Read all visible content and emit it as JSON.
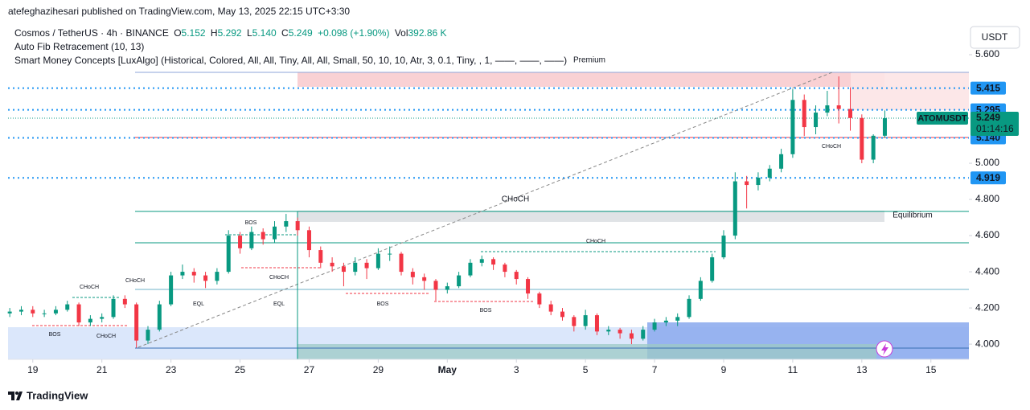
{
  "chart_data": {
    "type": "candlestick",
    "published": "atefeghazihesari published on TradingView.com, May 13, 2025 22:15 UTC+3:30",
    "legend": {
      "symbol": "Cosmos / TetherUS · 4h · BINANCE",
      "items": [
        {
          "key": "O",
          "value": "5.152"
        },
        {
          "key": "H",
          "value": "5.292"
        },
        {
          "key": "L",
          "value": "5.140"
        },
        {
          "key": "C",
          "value": "5.249"
        }
      ],
      "change": "+0.098 (+1.90%)",
      "vol_key": "Vol",
      "vol": "392.86 K"
    },
    "indicators": [
      "Auto Fib Retracement (10, 13)",
      "Smart Money Concepts [LuxAlgo] (Historical, Colored, All, All, Tiny, All, All, Small, 50, 10, 10, Atr, 3, 0.1, Tiny, , 1, ——, ——, ——)"
    ],
    "currency": "USDT",
    "brand": "TradingView",
    "up_color": "#089981",
    "down_color": "#f23645",
    "ohlc": [
      [
        4.17,
        4.2,
        4.15,
        4.18
      ],
      [
        4.18,
        4.21,
        4.16,
        4.19
      ],
      [
        4.19,
        4.21,
        4.15,
        4.17
      ],
      [
        4.17,
        4.19,
        4.15,
        4.17
      ],
      [
        4.17,
        4.21,
        4.16,
        4.19
      ],
      [
        4.19,
        4.24,
        4.18,
        4.22
      ],
      [
        4.22,
        4.23,
        4.1,
        4.12
      ],
      [
        4.12,
        4.16,
        4.1,
        4.14
      ],
      [
        4.14,
        4.17,
        4.12,
        4.15
      ],
      [
        4.15,
        4.27,
        4.14,
        4.25
      ],
      [
        4.25,
        4.27,
        4.2,
        4.22
      ],
      [
        4.22,
        4.23,
        3.98,
        4.02
      ],
      [
        4.02,
        4.1,
        4.0,
        4.08
      ],
      [
        4.08,
        4.24,
        4.07,
        4.22
      ],
      [
        4.22,
        4.4,
        4.21,
        4.38
      ],
      [
        4.38,
        4.44,
        4.36,
        4.4
      ],
      [
        4.4,
        4.42,
        4.34,
        4.38
      ],
      [
        4.38,
        4.4,
        4.31,
        4.35
      ],
      [
        4.35,
        4.42,
        4.33,
        4.4
      ],
      [
        4.4,
        4.63,
        4.39,
        4.6
      ],
      [
        4.6,
        4.62,
        4.5,
        4.53
      ],
      [
        4.53,
        4.65,
        4.52,
        4.62
      ],
      [
        4.62,
        4.64,
        4.55,
        4.58
      ],
      [
        4.58,
        4.68,
        4.56,
        4.65
      ],
      [
        4.65,
        4.72,
        4.62,
        4.68
      ],
      [
        4.68,
        4.7,
        4.6,
        4.63
      ],
      [
        4.63,
        4.65,
        4.48,
        4.52
      ],
      [
        4.52,
        4.54,
        4.42,
        4.45
      ],
      [
        4.45,
        4.48,
        4.4,
        4.43
      ],
      [
        4.43,
        4.45,
        4.32,
        4.4
      ],
      [
        4.4,
        4.48,
        4.38,
        4.45
      ],
      [
        4.45,
        4.47,
        4.36,
        4.42
      ],
      [
        4.42,
        4.53,
        4.41,
        4.5
      ],
      [
        4.5,
        4.54,
        4.46,
        4.5
      ],
      [
        4.5,
        4.51,
        4.38,
        4.4
      ],
      [
        4.4,
        4.42,
        4.33,
        4.37
      ],
      [
        4.37,
        4.39,
        4.3,
        4.35
      ],
      [
        4.35,
        4.36,
        4.24,
        4.3
      ],
      [
        4.3,
        4.34,
        4.28,
        4.32
      ],
      [
        4.32,
        4.4,
        4.31,
        4.38
      ],
      [
        4.38,
        4.47,
        4.37,
        4.45
      ],
      [
        4.45,
        4.49,
        4.43,
        4.47
      ],
      [
        4.47,
        4.48,
        4.41,
        4.44
      ],
      [
        4.44,
        4.45,
        4.37,
        4.4
      ],
      [
        4.4,
        4.41,
        4.33,
        4.36
      ],
      [
        4.36,
        4.37,
        4.25,
        4.28
      ],
      [
        4.28,
        4.29,
        4.2,
        4.22
      ],
      [
        4.22,
        4.24,
        4.16,
        4.18
      ],
      [
        4.18,
        4.2,
        4.13,
        4.15
      ],
      [
        4.15,
        4.16,
        4.07,
        4.1
      ],
      [
        4.1,
        4.19,
        4.08,
        4.16
      ],
      [
        4.16,
        4.17,
        4.05,
        4.07
      ],
      [
        4.07,
        4.1,
        4.05,
        4.08
      ],
      [
        4.08,
        4.09,
        4.03,
        4.06
      ],
      [
        4.06,
        4.08,
        4.0,
        4.03
      ],
      [
        4.03,
        4.1,
        4.02,
        4.08
      ],
      [
        4.08,
        4.14,
        4.07,
        4.12
      ],
      [
        4.12,
        4.15,
        4.1,
        4.13
      ],
      [
        4.13,
        4.17,
        4.1,
        4.15
      ],
      [
        4.15,
        4.27,
        4.14,
        4.25
      ],
      [
        4.25,
        4.37,
        4.24,
        4.35
      ],
      [
        4.35,
        4.5,
        4.34,
        4.48
      ],
      [
        4.48,
        4.63,
        4.47,
        4.6
      ],
      [
        4.6,
        4.95,
        4.58,
        4.9
      ],
      [
        4.9,
        4.93,
        4.75,
        4.88
      ],
      [
        4.88,
        4.95,
        4.85,
        4.92
      ],
      [
        4.92,
        4.99,
        4.9,
        4.97
      ],
      [
        4.97,
        5.08,
        4.95,
        5.05
      ],
      [
        5.05,
        5.41,
        5.03,
        5.35
      ],
      [
        5.35,
        5.38,
        5.15,
        5.2
      ],
      [
        5.2,
        5.32,
        5.16,
        5.28
      ],
      [
        5.28,
        5.4,
        5.26,
        5.32
      ],
      [
        5.32,
        5.48,
        5.22,
        5.3
      ],
      [
        5.3,
        5.42,
        5.18,
        5.25
      ],
      [
        5.25,
        5.27,
        5.0,
        5.02
      ],
      [
        5.02,
        5.16,
        5.0,
        5.152
      ],
      [
        5.152,
        5.292,
        5.14,
        5.249
      ]
    ],
    "xlim": [
      -0.15,
      83.3
    ],
    "xticks": [
      {
        "value": 2,
        "label": "19"
      },
      {
        "value": 8,
        "label": "21"
      },
      {
        "value": 14,
        "label": "23"
      },
      {
        "value": 20,
        "label": "25"
      },
      {
        "value": 26,
        "label": "27"
      },
      {
        "value": 32,
        "label": "29"
      },
      {
        "value": 38,
        "label": "May"
      },
      {
        "value": 44,
        "label": "3"
      },
      {
        "value": 50,
        "label": "5"
      },
      {
        "value": 56,
        "label": "7"
      },
      {
        "value": 62,
        "label": "9"
      },
      {
        "value": 68,
        "label": "11"
      },
      {
        "value": 74,
        "label": "13"
      },
      {
        "value": 80,
        "label": "15"
      }
    ],
    "ylim": [
      3.916,
      5.769
    ],
    "yticks": [
      {
        "value": 5.6,
        "label": "5.600"
      },
      {
        "value": 5.0,
        "label": "5.000"
      },
      {
        "value": 4.8,
        "label": "4.800"
      },
      {
        "value": 4.6,
        "label": "4.600"
      },
      {
        "value": 4.4,
        "label": "4.400"
      },
      {
        "value": 4.2,
        "label": "4.200"
      },
      {
        "value": 4.0,
        "label": "4.000"
      }
    ],
    "price_lines": [
      {
        "value": 5.415,
        "label": "5.415",
        "color": "#2196f3"
      },
      {
        "value": 5.295,
        "label": "5.295",
        "color": "#2196f3"
      },
      {
        "value": 5.14,
        "label": "5.140",
        "color": "#2196f3"
      },
      {
        "value": 4.919,
        "label": "4.919",
        "color": "#2196f3"
      }
    ],
    "last_price": {
      "name": "ATOMUSDT",
      "value": 5.249,
      "label": "5.249",
      "timer": "01:14:16",
      "color": "#089981"
    },
    "annotations": [
      {
        "text": "BOS",
        "color": "#089981"
      },
      {
        "text": "CHoCH",
        "color": "#089981"
      },
      {
        "text": "CHoCH",
        "color": "#089981"
      },
      {
        "text": "EQL",
        "color": "#089981"
      },
      {
        "text": "EQL",
        "color": "#089981"
      },
      {
        "text": "BOS",
        "color": "#f23645"
      },
      {
        "text": "CHoCH",
        "color": "#f23645"
      },
      {
        "text": "CHoCH",
        "color": "#f23645"
      },
      {
        "text": "BOS",
        "color": "#f23645"
      },
      {
        "text": "BOS",
        "color": "#f23645"
      },
      {
        "text": "CHoCH",
        "color": "#089981"
      },
      {
        "text": "CHoCH",
        "color": "#089981"
      },
      {
        "text": "CHoCH",
        "color": "#f23645"
      },
      {
        "text": "Premium",
        "color": "#f23645"
      },
      {
        "text": "Equilibrium",
        "color": "#9598a1"
      }
    ]
  }
}
